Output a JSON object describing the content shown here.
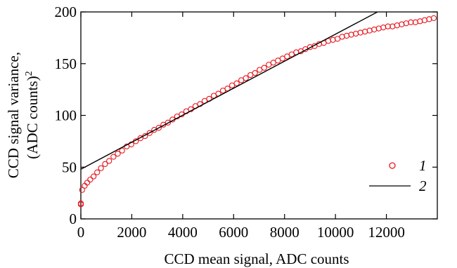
{
  "chart_data": {
    "type": "scatter",
    "xlabel": "CCD mean signal, ADC counts",
    "ylabel_line1": "CCD signal variance,",
    "ylabel_line2": "(ADC counts)",
    "ylabel_sup": "2",
    "xlim": [
      0,
      14000
    ],
    "ylim": [
      0,
      200
    ],
    "x_ticks": [
      0,
      2000,
      4000,
      6000,
      8000,
      10000,
      12000
    ],
    "x_tick_labels": [
      "0",
      "2000",
      "4000",
      "6000",
      "8000",
      "10000",
      "12000"
    ],
    "y_ticks": [
      0,
      50,
      100,
      150,
      200
    ],
    "y_tick_labels": [
      "0",
      "50",
      "100",
      "150",
      "200"
    ],
    "grid": false,
    "legend_position": "lower-right",
    "series": [
      {
        "name": "1",
        "kind": "markers",
        "color": "#e8141c",
        "marker": "open-circle",
        "x": [
          0,
          0,
          50,
          150,
          250,
          370,
          500,
          640,
          790,
          950,
          1110,
          1280,
          1450,
          1620,
          1800,
          1980,
          2160,
          2340,
          2520,
          2700,
          2880,
          3060,
          3240,
          3420,
          3600,
          3780,
          3960,
          4140,
          4320,
          4500,
          4680,
          4860,
          5040,
          5220,
          5400,
          5580,
          5760,
          5940,
          6120,
          6300,
          6480,
          6660,
          6840,
          7020,
          7200,
          7380,
          7560,
          7740,
          7920,
          8100,
          8280,
          8460,
          8640,
          8820,
          9000,
          9180,
          9360,
          9540,
          9720,
          9900,
          10080,
          10260,
          10440,
          10620,
          10800,
          10980,
          11160,
          11340,
          11520,
          11700,
          11880,
          12060,
          12240,
          12420,
          12600,
          12780,
          12960,
          13140,
          13320,
          13500,
          13680,
          13860
        ],
        "y": [
          14,
          15,
          28,
          32,
          35,
          38,
          41,
          45,
          49,
          53,
          56,
          60,
          63,
          66,
          70,
          72,
          75,
          78,
          80,
          83,
          86,
          88,
          91,
          93,
          96,
          99,
          101,
          104,
          106,
          109,
          111,
          114,
          116,
          119,
          121,
          124,
          126,
          129,
          131,
          134,
          136,
          139,
          141,
          144,
          146,
          149,
          151,
          153,
          155,
          157,
          159,
          161,
          162,
          164,
          166,
          167,
          169,
          170,
          172,
          173,
          174,
          176,
          177,
          178,
          179,
          180,
          181,
          182,
          183,
          184,
          185,
          186,
          186,
          187,
          188,
          189,
          190,
          190,
          191,
          192,
          193,
          194
        ]
      },
      {
        "name": "2",
        "kind": "line",
        "color": "#000000",
        "x": [
          0,
          11650
        ],
        "y": [
          48,
          200
        ]
      }
    ]
  }
}
